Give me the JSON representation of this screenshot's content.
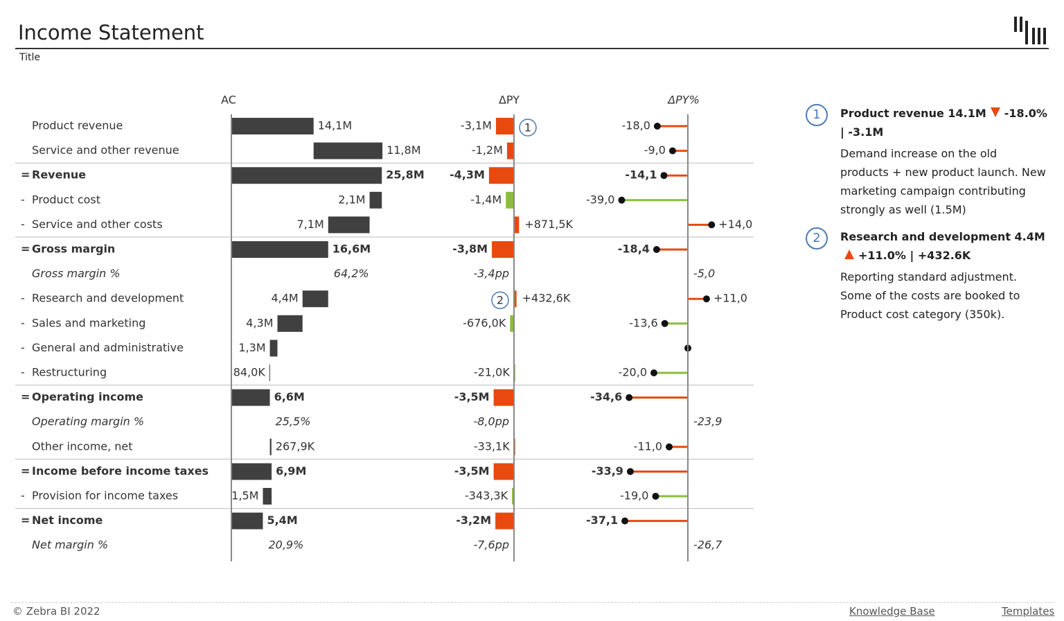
{
  "header": {
    "title": "Income Statement",
    "subtitle": "Title"
  },
  "chart_data": {
    "type": "waterfall-table",
    "columns": {
      "ac": "AC",
      "dpy": "ΔPY",
      "dpy_pct": "ΔPY%"
    },
    "bar_color": "#404040",
    "bad_color": "#e8490f",
    "good_color": "#8bbd3a",
    "pct_color": "#4a7ab5",
    "rows": [
      {
        "label": "Product revenue",
        "kind": "add",
        "ac": 14.1,
        "ac_label": "14,1M",
        "dpy": -3.1,
        "dpy_label": "-3,1M",
        "dpy_pct": -18.0,
        "dpy_pct_label": "-18,0",
        "note": "1"
      },
      {
        "label": "Service and other revenue",
        "kind": "add",
        "ac": 11.8,
        "ac_label": "11,8M",
        "dpy": -1.2,
        "dpy_label": "-1,2M",
        "dpy_pct": -9.0,
        "dpy_pct_label": "-9,0"
      },
      {
        "prefix": "=",
        "label": "Revenue",
        "kind": "total",
        "ac": 25.8,
        "ac_label": "25,8M",
        "dpy": -4.3,
        "dpy_label": "-4,3M",
        "dpy_pct": -14.1,
        "dpy_pct_label": "-14,1"
      },
      {
        "prefix": "-",
        "label": "Product cost",
        "kind": "sub",
        "ac": 2.1,
        "ac_label": "2,1M",
        "dpy": -1.4,
        "dpy_label": "-1,4M",
        "dpy_pct": -39.0,
        "dpy_pct_label": "-39,0"
      },
      {
        "prefix": "-",
        "label": "Service and other costs",
        "kind": "sub",
        "ac": 7.1,
        "ac_label": "7,1M",
        "dpy": 0.8715,
        "dpy_label": "+871,5K",
        "dpy_pct": 14.0,
        "dpy_pct_label": "+14,0"
      },
      {
        "prefix": "=",
        "label": "Gross margin",
        "kind": "total",
        "ac": 16.6,
        "ac_label": "16,6M",
        "dpy": -3.8,
        "dpy_label": "-3,8M",
        "dpy_pct": -18.4,
        "dpy_pct_label": "-18,4"
      },
      {
        "label": "Gross margin %",
        "kind": "pct",
        "ac": 64.2,
        "ac_label": "64,2%",
        "dpy": -3.4,
        "dpy_label": "-3,4pp",
        "dpy_pct": -5.0,
        "dpy_pct_label": "-5,0"
      },
      {
        "prefix": "-",
        "label": "Research and development",
        "kind": "sub",
        "ac": 4.4,
        "ac_label": "4,4M",
        "dpy": 0.4326,
        "dpy_label": "+432,6K",
        "dpy_pct": 11.0,
        "dpy_pct_label": "+11,0",
        "note": "2"
      },
      {
        "prefix": "-",
        "label": "Sales and marketing",
        "kind": "sub",
        "ac": 4.3,
        "ac_label": "4,3M",
        "dpy": -0.676,
        "dpy_label": "-676,0K",
        "dpy_pct": -13.6,
        "dpy_pct_label": "-13,6"
      },
      {
        "prefix": "-",
        "label": "General and administrative",
        "kind": "sub",
        "ac": 1.3,
        "ac_label": "1,3M",
        "dpy": null,
        "dpy_label": null,
        "dpy_pct": 0,
        "dpy_pct_label": null
      },
      {
        "prefix": "-",
        "label": "Restructuring",
        "kind": "sub",
        "ac": 0.084,
        "ac_label": "84,0K",
        "dpy": -0.021,
        "dpy_label": "-21,0K",
        "dpy_pct": -20.0,
        "dpy_pct_label": "-20,0"
      },
      {
        "prefix": "=",
        "label": "Operating income",
        "kind": "total",
        "ac": 6.6,
        "ac_label": "6,6M",
        "dpy": -3.5,
        "dpy_label": "-3,5M",
        "dpy_pct": -34.6,
        "dpy_pct_label": "-34,6"
      },
      {
        "label": "Operating margin %",
        "kind": "pct",
        "ac": 25.5,
        "ac_label": "25,5%",
        "dpy": -8.0,
        "dpy_label": "-8,0pp",
        "dpy_pct": -23.9,
        "dpy_pct_label": "-23,9"
      },
      {
        "label": "Other income, net",
        "kind": "add",
        "ac": 0.2679,
        "ac_label": "267,9K",
        "dpy": -0.0331,
        "dpy_label": "-33,1K",
        "dpy_pct": -11.0,
        "dpy_pct_label": "-11,0"
      },
      {
        "prefix": "=",
        "label": "Income before income taxes",
        "kind": "total",
        "ac": 6.9,
        "ac_label": "6,9M",
        "dpy": -3.5,
        "dpy_label": "-3,5M",
        "dpy_pct": -33.9,
        "dpy_pct_label": "-33,9"
      },
      {
        "prefix": "-",
        "label": "Provision for income taxes",
        "kind": "sub",
        "ac": 1.5,
        "ac_label": "1,5M",
        "dpy": -0.3433,
        "dpy_label": "-343,3K",
        "dpy_pct": -19.0,
        "dpy_pct_label": "-19,0"
      },
      {
        "prefix": "=",
        "label": "Net income",
        "kind": "total",
        "ac": 5.4,
        "ac_label": "5,4M",
        "dpy": -3.2,
        "dpy_label": "-3,2M",
        "dpy_pct": -37.1,
        "dpy_pct_label": "-37,1"
      },
      {
        "label": "Net margin %",
        "kind": "pct",
        "ac": 20.9,
        "ac_label": "20,9%",
        "dpy": -7.6,
        "dpy_label": "-7,6pp",
        "dpy_pct": -26.7,
        "dpy_pct_label": "-26,7"
      }
    ]
  },
  "comments": [
    {
      "number": "1",
      "heading": "Product revenue 14.1M",
      "direction": "down",
      "delta": "-18.0% | -3.1M",
      "body": "Demand increase on the old products + new product launch. New marketing campaign contributing strongly as well (1.5M)"
    },
    {
      "number": "2",
      "heading": "Research and development 4.4M",
      "direction": "up",
      "delta": "+11.0% | +432.6K",
      "body": "Reporting standard adjustment. Some of the costs are booked to Product cost category (350k)."
    }
  ],
  "footer": {
    "copyright": "© Zebra BI 2022",
    "links": [
      "Knowledge Base",
      "Templates"
    ]
  }
}
